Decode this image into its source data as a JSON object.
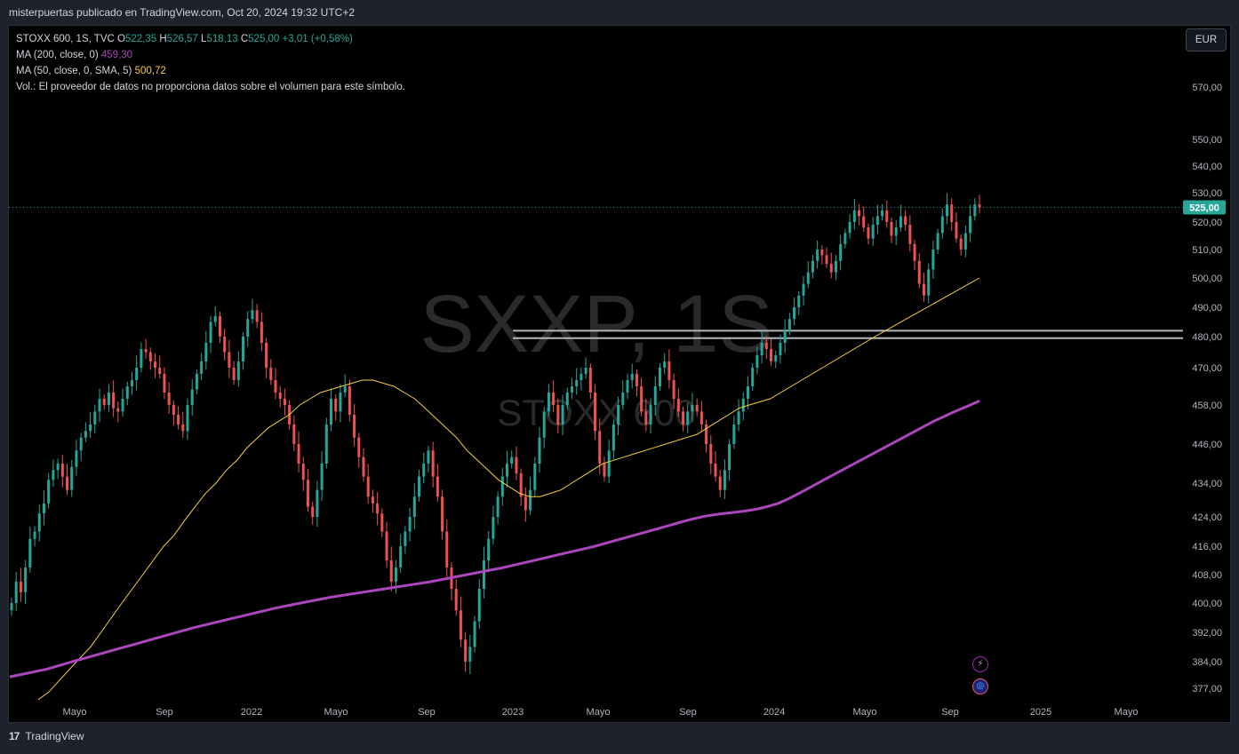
{
  "header": {
    "attribution": "misterpuertas publicado en TradingView.com, Oct 20, 2024 19:32 UTC+2"
  },
  "legend": {
    "symbol": "STOXX 600, 1S, TVC",
    "open_label": "O",
    "open": "522,35",
    "high_label": "H",
    "high": "526,57",
    "low_label": "L",
    "low": "518,13",
    "close_label": "C",
    "close": "525,00",
    "change": "+3,01 (+0,58%)",
    "ma200_label": "MA (200, close, 0)",
    "ma200_value": "459,30",
    "ma50_label": "MA (50, close, 0, SMA, 5)",
    "ma50_value": "500,72",
    "vol_text": "Vol.: El proveedor de datos no proporciona datos sobre el volumen para este símbolo."
  },
  "currency_button": "EUR",
  "watermark": {
    "line1": "SXXP, 1S",
    "line2": "STOXX 600"
  },
  "footer": {
    "logo_text": "TradingView"
  },
  "colors": {
    "up": "#26a69a",
    "down": "#ef5350",
    "ma50": "#f5d03f",
    "ma200": "#ab47bc",
    "level": "#b2b5be",
    "last_price_bg": "#26a69a"
  },
  "icons": {
    "flash": "lightning-icon",
    "event": "earnings-icon"
  },
  "chart_data": {
    "type": "candlestick",
    "timeframe": "1S",
    "last_price": "525,00",
    "y_ticks": [
      "570,00",
      "550,00",
      "540,00",
      "530,00",
      "520,00",
      "510,00",
      "500,00",
      "490,00",
      "480,00",
      "470,00",
      "458,00",
      "446,00",
      "434,00",
      "424,00",
      "416,00",
      "408,00",
      "400,00",
      "392,00",
      "384,00",
      "377,00"
    ],
    "x_ticks": [
      "Mayo",
      "Sep",
      "2022",
      "Mayo",
      "Sep",
      "2023",
      "Mayo",
      "Sep",
      "2024",
      "Mayo",
      "Sep",
      "2025",
      "Mayo"
    ],
    "horizontal_levels": [
      479.5,
      482
    ],
    "close_series": [
      400,
      406,
      403,
      410,
      418,
      420,
      425,
      428,
      435,
      438,
      440,
      436,
      432,
      439,
      444,
      448,
      450,
      452,
      456,
      460,
      458,
      462,
      457,
      456,
      460,
      464,
      466,
      470,
      476,
      475,
      472,
      470,
      468,
      462,
      458,
      455,
      452,
      450,
      458,
      463,
      468,
      472,
      478,
      485,
      487,
      480,
      475,
      470,
      466,
      472,
      480,
      486,
      489,
      485,
      478,
      470,
      466,
      462,
      460,
      458,
      452,
      446,
      440,
      435,
      427,
      424,
      432,
      440,
      452,
      460,
      456,
      462,
      464,
      455,
      448,
      442,
      436,
      430,
      428,
      425,
      420,
      412,
      406,
      410,
      416,
      420,
      424,
      430,
      436,
      440,
      444,
      436,
      430,
      420,
      410,
      404,
      398,
      390,
      384,
      388,
      395,
      404,
      412,
      418,
      424,
      430,
      436,
      440,
      442,
      437,
      430,
      426,
      432,
      440,
      448,
      456,
      462,
      458,
      452,
      458,
      462,
      464,
      466,
      468,
      470,
      462,
      450,
      440,
      436,
      444,
      452,
      458,
      462,
      466,
      468,
      464,
      456,
      452,
      458,
      464,
      470,
      472,
      466,
      460,
      456,
      452,
      456,
      458,
      456,
      452,
      446,
      440,
      436,
      432,
      438,
      446,
      452,
      456,
      460,
      464,
      470,
      474,
      478,
      476,
      472,
      474,
      478,
      482,
      486,
      490,
      494,
      498,
      502,
      506,
      510,
      508,
      505,
      502,
      506,
      512,
      516,
      520,
      524,
      522,
      518,
      514,
      519,
      522,
      524,
      520,
      515,
      518,
      522,
      519,
      512,
      506,
      498,
      494,
      503,
      510,
      516,
      522,
      526,
      520,
      514,
      510,
      516,
      522,
      526,
      525
    ],
    "ma50_series": [
      374,
      376,
      379,
      382,
      385,
      388,
      392,
      396,
      400,
      404,
      408,
      412,
      416,
      419,
      423,
      427,
      431,
      434,
      438,
      441,
      445,
      448,
      451,
      453,
      455,
      458,
      460,
      462,
      463,
      464,
      465,
      466,
      466,
      465,
      464,
      462,
      460,
      457,
      454,
      451,
      448,
      444,
      441,
      438,
      435,
      433,
      431,
      430,
      430,
      431,
      432,
      434,
      436,
      438,
      440,
      441,
      442,
      443,
      444,
      445,
      446,
      447,
      448,
      449,
      451,
      453,
      455,
      457,
      458,
      459,
      460,
      462,
      464,
      466,
      468,
      470,
      472,
      474,
      476,
      478,
      480,
      482,
      484,
      486,
      488,
      490,
      492,
      494,
      496,
      498,
      500
    ],
    "ma200_series": [
      380,
      380.5,
      381,
      381.5,
      382,
      382.7,
      383.4,
      384.1,
      384.8,
      385.5,
      386.2,
      386.9,
      387.6,
      388.3,
      389,
      389.7,
      390.4,
      391.1,
      391.8,
      392.5,
      393.2,
      393.8,
      394.4,
      395,
      395.6,
      396.2,
      396.8,
      397.4,
      398,
      398.6,
      399.1,
      399.6,
      400.1,
      400.6,
      401.1,
      401.6,
      402,
      402.4,
      402.8,
      403.2,
      403.6,
      404,
      404.4,
      404.8,
      405.2,
      405.6,
      406,
      406.5,
      407,
      407.5,
      408,
      408.5,
      409,
      409.5,
      410,
      410.6,
      411.2,
      411.8,
      412.4,
      413,
      413.6,
      414.2,
      414.8,
      415.4,
      416,
      416.7,
      417.4,
      418.1,
      418.8,
      419.5,
      420.2,
      420.9,
      421.6,
      422.3,
      423,
      423.6,
      424.2,
      424.6,
      425,
      425.3,
      425.6,
      426,
      426.5,
      427.2,
      428,
      429.2,
      430.6,
      432,
      433.5,
      435,
      436.5,
      438,
      439.5,
      441,
      442.5,
      444,
      445.5,
      447,
      448.5,
      450,
      451.5,
      453,
      454.3,
      455.6,
      456.8,
      458,
      459.3
    ]
  }
}
